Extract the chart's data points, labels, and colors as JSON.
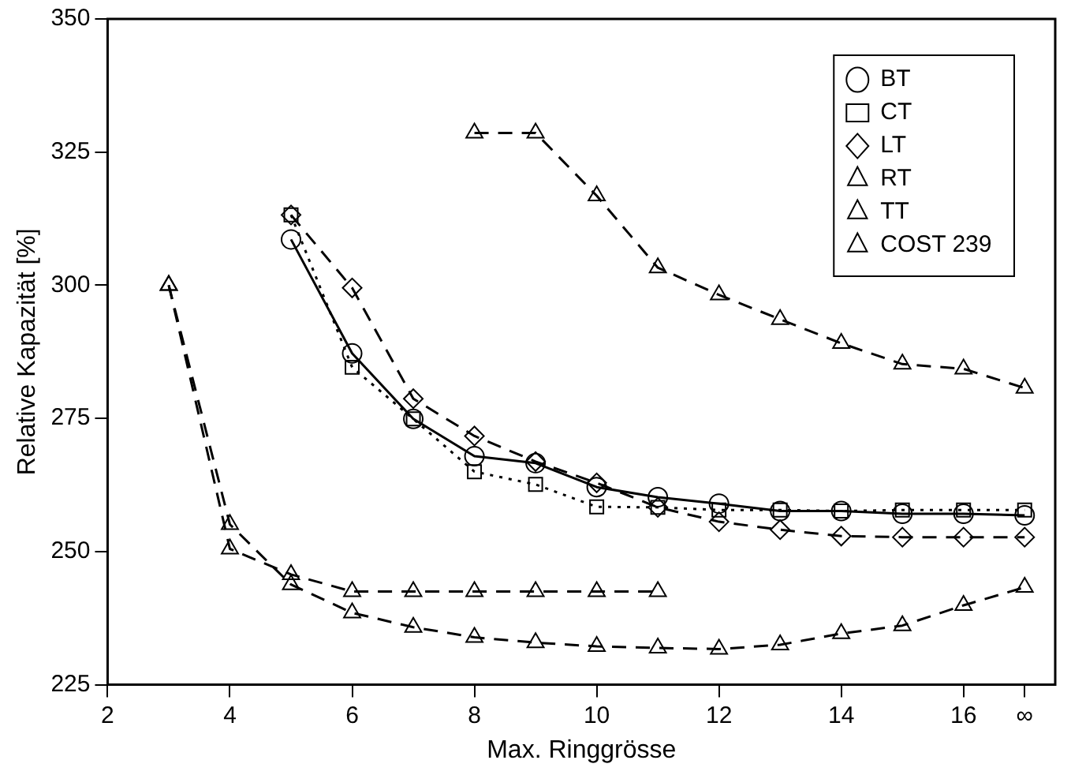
{
  "chart_data": {
    "type": "line",
    "xlabel": "Max. Ringgrösse",
    "ylabel": "Relative Kapazität [%]",
    "xlim": [
      2,
      17.5
    ],
    "xticks": [
      2,
      4,
      6,
      8,
      10,
      12,
      14,
      16,
      {
        "value": 17,
        "label": "∞"
      }
    ],
    "ylim": [
      225,
      350
    ],
    "yticks": [
      225,
      250,
      275,
      300,
      325,
      350
    ],
    "grid": false,
    "legend": "top right",
    "series": [
      {
        "name": "BT",
        "color": "#000000",
        "marker": "circle",
        "line_style": "solid",
        "x": [
          5,
          6,
          7,
          8,
          9,
          10,
          11,
          12,
          13,
          14,
          15,
          16,
          17
        ],
        "values": [
          308.6,
          287.2,
          274.9,
          267.9,
          266.6,
          262.1,
          260.2,
          259.0,
          257.6,
          257.6,
          257.1,
          257.1,
          256.8
        ]
      },
      {
        "name": "CT",
        "color": "#000000",
        "marker": "square",
        "line_style": "dotted",
        "x": [
          5,
          6,
          7,
          8,
          9,
          10,
          11,
          12,
          13,
          14,
          15,
          16,
          17
        ],
        "values": [
          313.2,
          284.6,
          274.9,
          265.0,
          262.6,
          258.4,
          258.3,
          257.8,
          257.8,
          257.6,
          257.8,
          257.8,
          257.8
        ]
      },
      {
        "name": "LT",
        "color": "#000000",
        "marker": "diamond",
        "line_style": "dashed",
        "x": [
          5,
          6,
          7,
          8,
          9,
          10,
          11,
          12,
          13,
          14,
          15,
          16,
          17
        ],
        "values": [
          313.2,
          299.5,
          278.7,
          271.7,
          266.9,
          262.9,
          258.3,
          255.6,
          254.1,
          252.9,
          252.7,
          252.7,
          252.7
        ]
      },
      {
        "name": "RT",
        "color": "#000000",
        "marker": "triangle",
        "line_style": "dashed",
        "x": [
          8,
          9,
          10,
          11,
          12,
          13,
          14,
          15,
          16,
          17
        ],
        "values": [
          328.6,
          328.6,
          316.8,
          303.3,
          298.2,
          293.6,
          289.1,
          285.2,
          284.3,
          280.7
        ]
      },
      {
        "name": "TT",
        "color": "#000000",
        "marker": "triangle",
        "line_style": "dashed",
        "x": [
          3,
          4,
          5,
          6,
          7,
          8,
          9,
          10,
          11,
          12,
          13,
          14,
          15,
          16,
          17
        ],
        "values": [
          300,
          255.1,
          243.8,
          238.5,
          235.8,
          233.9,
          232.9,
          232.2,
          231.9,
          231.7,
          232.5,
          234.6,
          236.1,
          239.9,
          243.3
        ]
      },
      {
        "name": "COST 239",
        "color": "#000000",
        "marker": "triangle",
        "line_style": "dashed",
        "x": [
          3,
          4,
          5,
          6,
          7,
          8,
          9,
          10,
          11
        ],
        "values": [
          300,
          250.5,
          245.7,
          242.5,
          242.5,
          242.5,
          242.5,
          242.5,
          242.5
        ]
      }
    ]
  }
}
